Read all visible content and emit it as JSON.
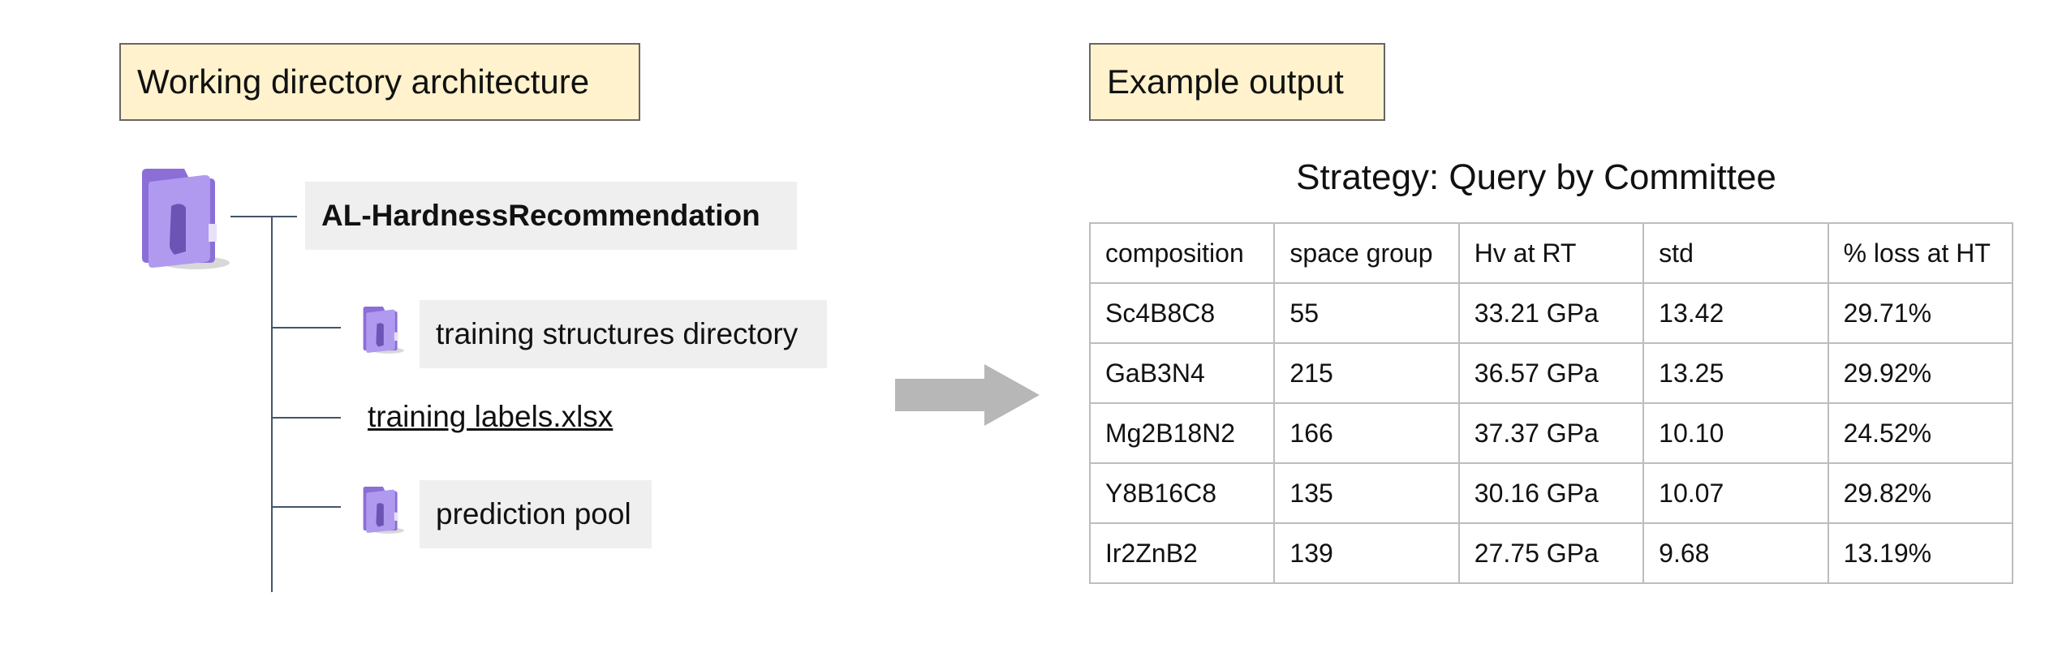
{
  "left_panel": {
    "heading": "Working directory architecture",
    "root_folder": "AL-HardnessRecommendation",
    "items": [
      {
        "label": "training structures directory",
        "kind": "folder"
      },
      {
        "label": "training labels.xlsx",
        "kind": "file"
      },
      {
        "label": "prediction pool",
        "kind": "folder"
      }
    ]
  },
  "right_panel": {
    "heading": "Example output",
    "strategy_title": "Strategy: Query by Committee"
  },
  "chart_data": {
    "type": "table",
    "title": "Strategy: Query by Committee",
    "columns": [
      "composition",
      "space group",
      "Hv at RT",
      "std",
      "% loss at HT"
    ],
    "rows": [
      [
        "Sc4B8C8",
        "55",
        "33.21 GPa",
        "13.42",
        "29.71%"
      ],
      [
        "GaB3N4",
        "215",
        "36.57 GPa",
        "13.25",
        "29.92%"
      ],
      [
        "Mg2B18N2",
        "166",
        "37.37 GPa",
        "10.10",
        "24.52%"
      ],
      [
        "Y8B16C8",
        "135",
        "30.16 GPa",
        "10.07",
        "29.82%"
      ],
      [
        "Ir2ZnB2",
        "139",
        "27.75 GPa",
        "9.68",
        "13.19%"
      ]
    ]
  },
  "colors": {
    "label_fill": "#fff2cc",
    "label_border": "#666666",
    "item_fill": "#efefef",
    "tree_line": "#44546a",
    "arrow": "#b7b7b7",
    "table_border": "#bdbdbd",
    "folder": "#a98ce8"
  },
  "icons": {
    "folder": "folder-icon",
    "arrow": "right-arrow-icon"
  }
}
